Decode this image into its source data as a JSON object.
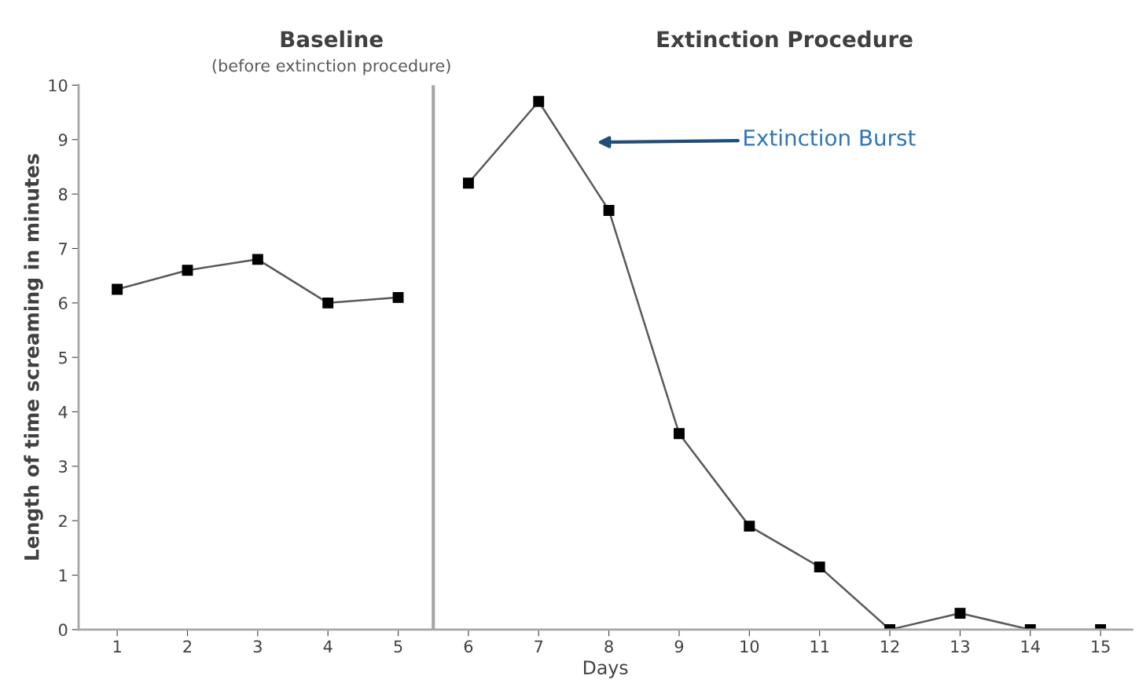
{
  "chart_data": {
    "type": "line",
    "xlabel": "Days",
    "ylabel": "Length of time screaming in minutes",
    "series": [
      {
        "color": "#595959",
        "x": [
          1,
          2,
          3,
          4,
          5
        ],
        "values": [
          6.25,
          6.6,
          6.8,
          6.0,
          6.1
        ]
      },
      {
        "color": "#595959",
        "x": [
          6,
          7,
          8,
          9,
          10,
          11,
          12,
          13,
          14,
          15
        ],
        "values": [
          8.2,
          9.7,
          7.7,
          3.6,
          1.9,
          1.15,
          0,
          0.3,
          0,
          0
        ]
      }
    ],
    "marker": "square",
    "line_style": "solid",
    "grid": false,
    "legend": false,
    "xlim": [
      0.45,
      15.45
    ],
    "xticks": [
      1,
      2,
      3,
      4,
      5,
      6,
      7,
      8,
      9,
      10,
      11,
      12,
      13,
      14,
      15
    ],
    "ylim": [
      0,
      10
    ],
    "yticks": [
      0,
      1,
      2,
      3,
      4,
      5,
      6,
      7,
      8,
      9,
      10
    ],
    "ref_lines": [
      {
        "axis": "x",
        "value": 5.5,
        "color": "#a6a6a6"
      }
    ],
    "annotations": [
      "Baseline",
      "(before extinction procedure)",
      "Extinction Procedure",
      "Extinction Burst"
    ]
  }
}
